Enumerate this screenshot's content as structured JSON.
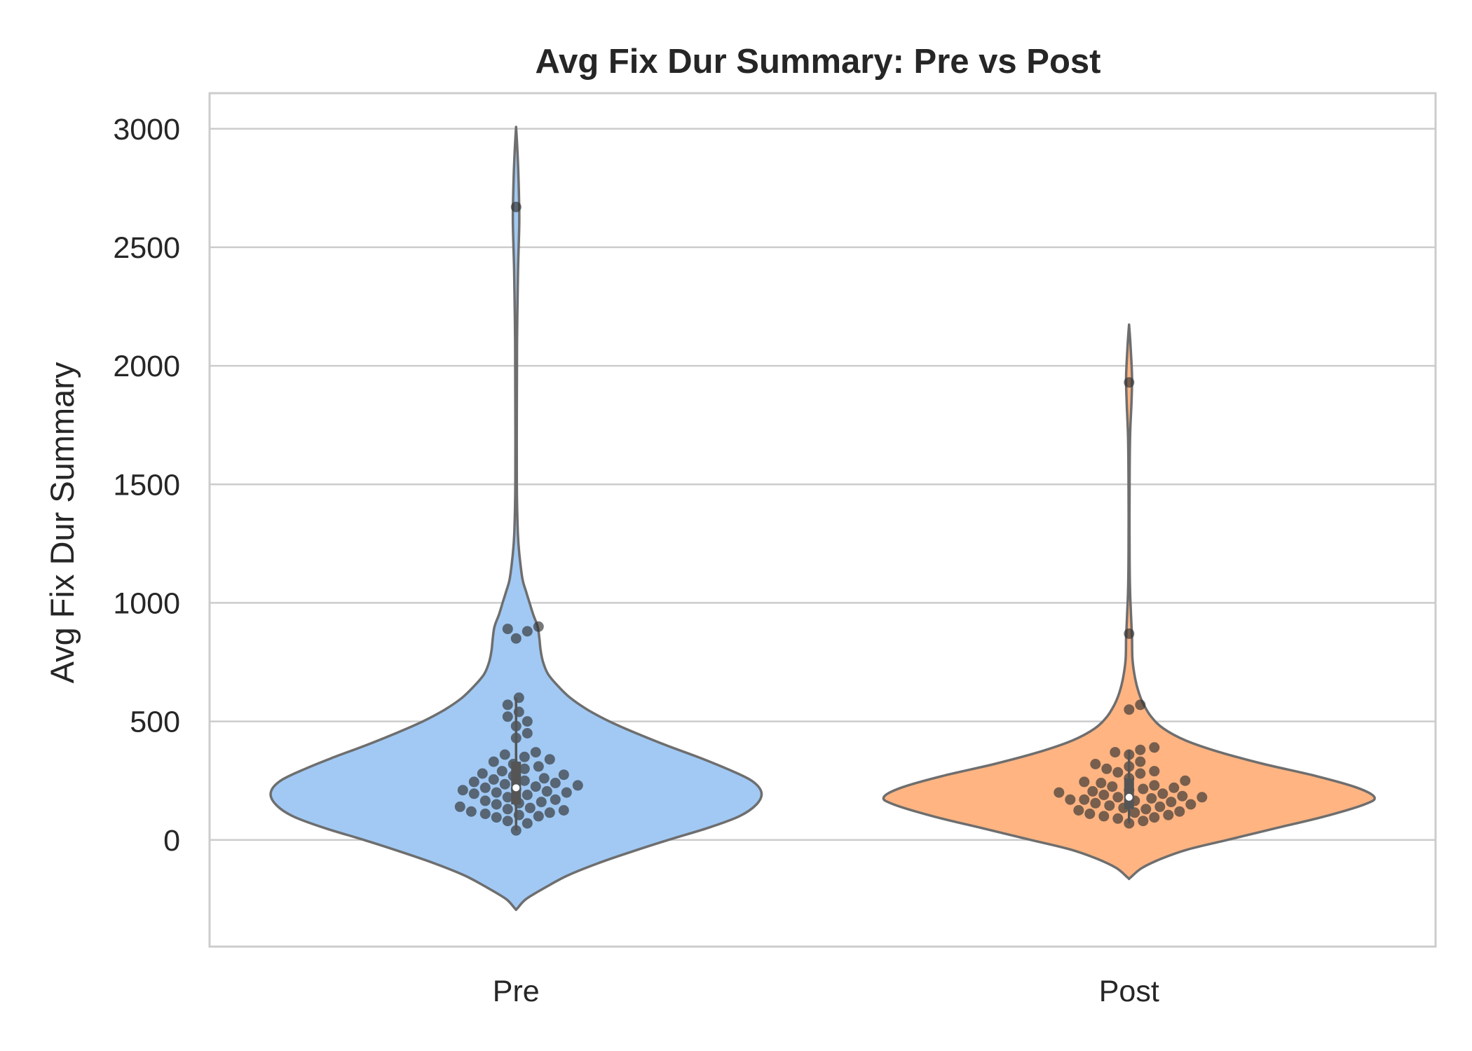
{
  "chart_data": {
    "type": "violin",
    "title": "Avg Fix Dur Summary: Pre vs Post",
    "xlabel": "",
    "ylabel": "Avg Fix Dur Summary",
    "ylim": [
      -450,
      3150
    ],
    "yticks": [
      0,
      500,
      1000,
      1500,
      2000,
      2500,
      3000
    ],
    "grid": "horizontal",
    "categories": [
      "Pre",
      "Post"
    ],
    "colors": {
      "Pre": "#a1c9f4",
      "Post": "#ffb482",
      "outline": "#6e6e6e",
      "points": "#2f2f2f",
      "grid": "#cccccc",
      "frame": "#cccccc"
    },
    "series": [
      {
        "category": "Pre",
        "summary": {
          "median": 220,
          "q1": 150,
          "q3": 330,
          "whisker_low": 40,
          "whisker_high": 600
        },
        "density": [
          [
            -290,
            0.004
          ],
          [
            -250,
            0.04
          ],
          [
            -200,
            0.12
          ],
          [
            -150,
            0.21
          ],
          [
            -100,
            0.33
          ],
          [
            -50,
            0.47
          ],
          [
            0,
            0.62
          ],
          [
            50,
            0.78
          ],
          [
            100,
            0.91
          ],
          [
            150,
            0.98
          ],
          [
            200,
            1.0
          ],
          [
            250,
            0.96
          ],
          [
            300,
            0.86
          ],
          [
            350,
            0.74
          ],
          [
            400,
            0.61
          ],
          [
            450,
            0.49
          ],
          [
            500,
            0.38
          ],
          [
            550,
            0.29
          ],
          [
            600,
            0.22
          ],
          [
            650,
            0.17
          ],
          [
            700,
            0.13
          ],
          [
            750,
            0.11
          ],
          [
            800,
            0.1
          ],
          [
            850,
            0.095
          ],
          [
            900,
            0.088
          ],
          [
            950,
            0.07
          ],
          [
            1000,
            0.055
          ],
          [
            1050,
            0.04
          ],
          [
            1100,
            0.026
          ],
          [
            1200,
            0.014
          ],
          [
            1300,
            0.007
          ],
          [
            1500,
            0.003
          ],
          [
            1800,
            0.003
          ],
          [
            2100,
            0.004
          ],
          [
            2400,
            0.008
          ],
          [
            2600,
            0.013
          ],
          [
            2700,
            0.012
          ],
          [
            2850,
            0.008
          ],
          [
            2990,
            0.001
          ]
        ],
        "points": [
          2670,
          900,
          890,
          880,
          850,
          600,
          570,
          540,
          520,
          500,
          480,
          450,
          430,
          370,
          360,
          350,
          340,
          330,
          320,
          310,
          300,
          290,
          280,
          275,
          270,
          260,
          255,
          250,
          245,
          240,
          235,
          230,
          225,
          220,
          215,
          210,
          205,
          200,
          200,
          195,
          190,
          180,
          170,
          165,
          160,
          155,
          150,
          140,
          135,
          130,
          125,
          120,
          115,
          110,
          105,
          100,
          95,
          80,
          70,
          40
        ]
      },
      {
        "category": "Post",
        "summary": {
          "median": 180,
          "q1": 130,
          "q3": 260,
          "whisker_low": 70,
          "whisker_high": 380
        },
        "density": [
          [
            -160,
            0.004
          ],
          [
            -120,
            0.05
          ],
          [
            -80,
            0.13
          ],
          [
            -40,
            0.24
          ],
          [
            0,
            0.4
          ],
          [
            50,
            0.6
          ],
          [
            100,
            0.8
          ],
          [
            150,
            0.96
          ],
          [
            180,
            1.0
          ],
          [
            220,
            0.93
          ],
          [
            270,
            0.76
          ],
          [
            320,
            0.55
          ],
          [
            370,
            0.37
          ],
          [
            420,
            0.23
          ],
          [
            470,
            0.14
          ],
          [
            520,
            0.09
          ],
          [
            570,
            0.06
          ],
          [
            620,
            0.04
          ],
          [
            680,
            0.025
          ],
          [
            760,
            0.014
          ],
          [
            850,
            0.012
          ],
          [
            950,
            0.008
          ],
          [
            1050,
            0.004
          ],
          [
            1200,
            0.002
          ],
          [
            1500,
            0.002
          ],
          [
            1700,
            0.004
          ],
          [
            1850,
            0.01
          ],
          [
            1950,
            0.012
          ],
          [
            2050,
            0.008
          ],
          [
            2160,
            0.001
          ]
        ],
        "points": [
          1930,
          870,
          570,
          550,
          390,
          380,
          370,
          360,
          330,
          320,
          310,
          300,
          290,
          285,
          280,
          260,
          250,
          245,
          240,
          230,
          225,
          220,
          215,
          210,
          205,
          200,
          195,
          190,
          185,
          180,
          180,
          175,
          170,
          170,
          165,
          160,
          155,
          150,
          145,
          140,
          135,
          130,
          125,
          120,
          115,
          110,
          105,
          100,
          95,
          90,
          80,
          70
        ]
      }
    ]
  }
}
